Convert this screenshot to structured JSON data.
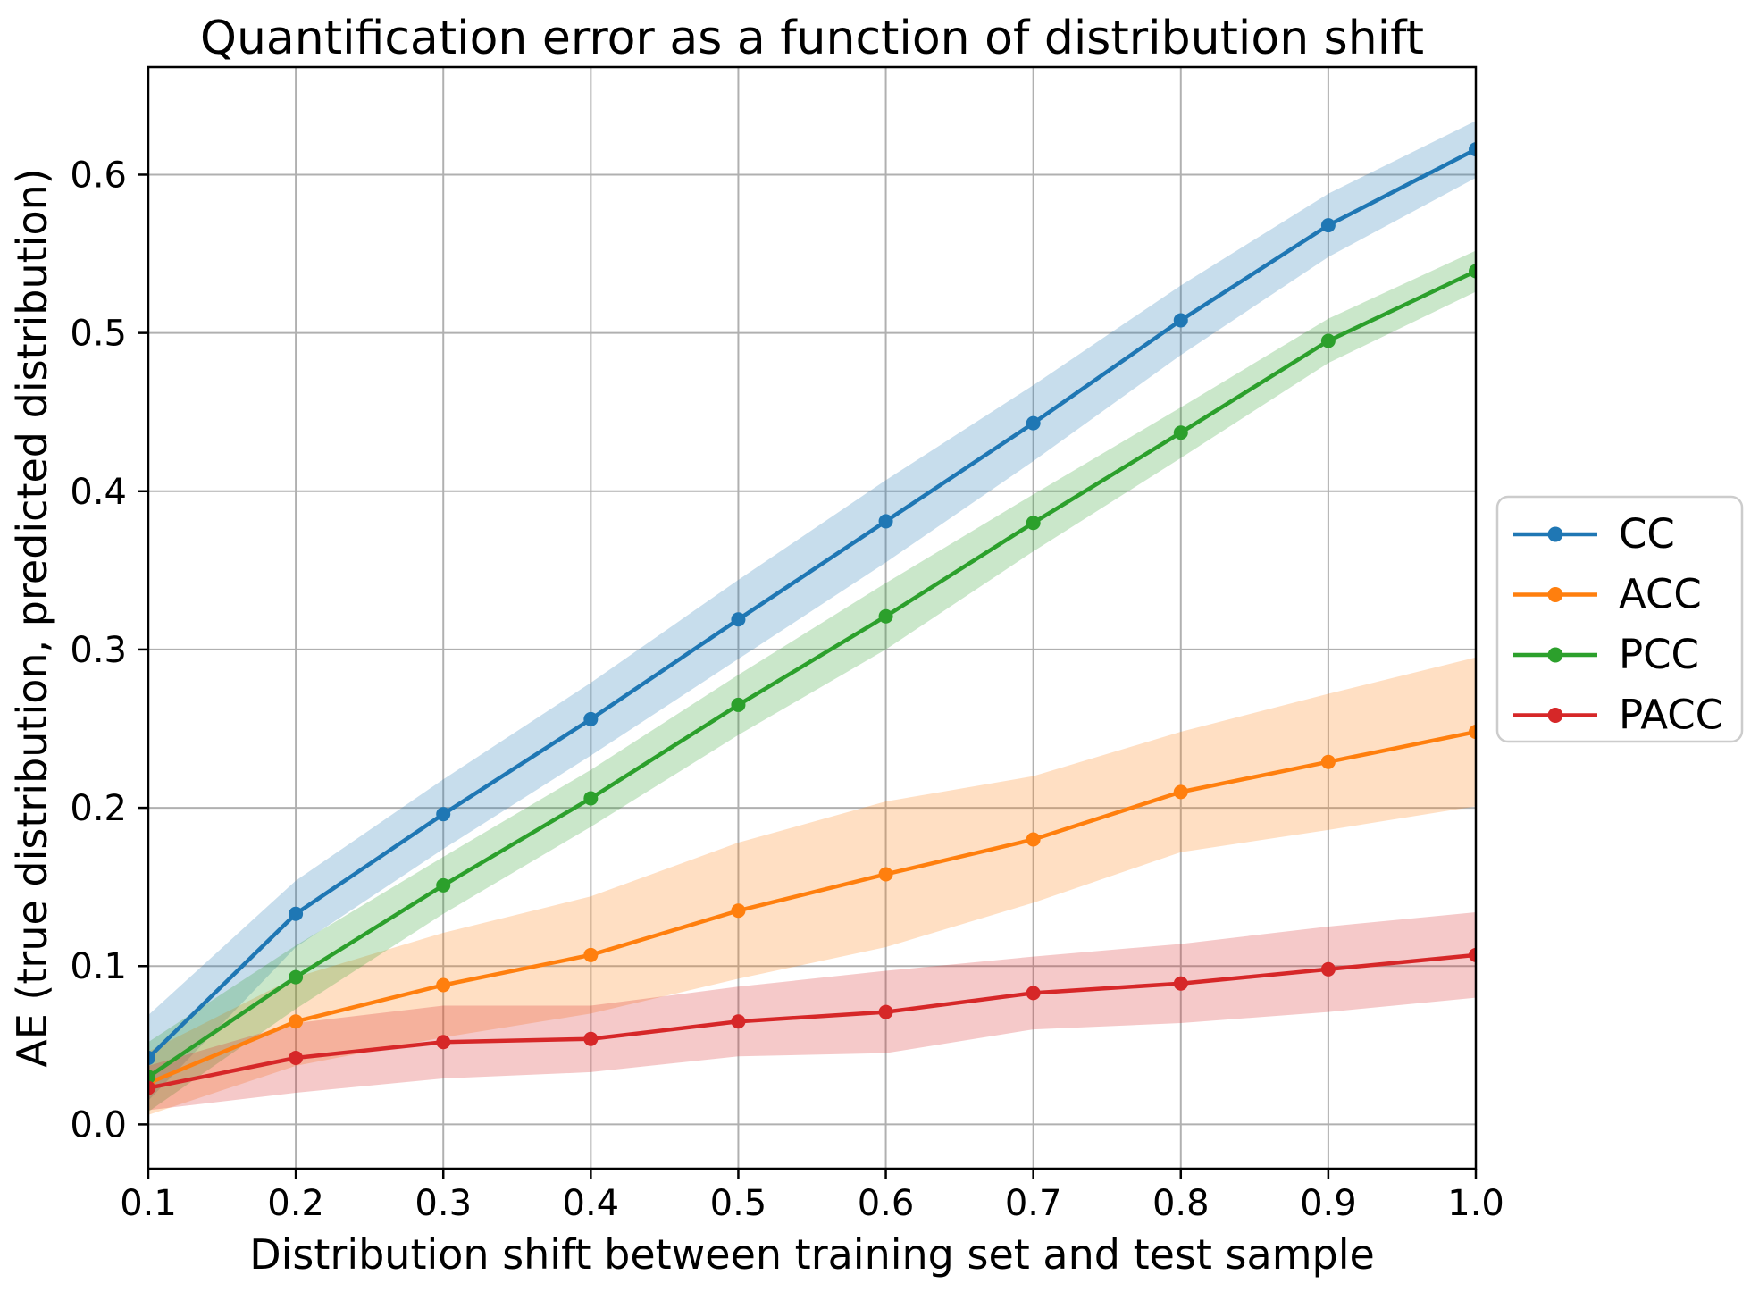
{
  "figure": {
    "background": "#ffffff"
  },
  "chart_data": {
    "type": "line",
    "title": "Quantification error as a function of distribution shift",
    "xlabel": "Distribution shift between training set and test sample",
    "ylabel": "AE (true distribution, predicted distribution)",
    "x": [
      0.1,
      0.2,
      0.3,
      0.4,
      0.5,
      0.6,
      0.7,
      0.8,
      0.9,
      1.0
    ],
    "xtick_labels": [
      "0.1",
      "0.2",
      "0.3",
      "0.4",
      "0.5",
      "0.6",
      "0.7",
      "0.8",
      "0.9",
      "1.0"
    ],
    "ytick_values": [
      0.0,
      0.1,
      0.2,
      0.3,
      0.4,
      0.5,
      0.6
    ],
    "ytick_labels": [
      "0.0",
      "0.1",
      "0.2",
      "0.3",
      "0.4",
      "0.5",
      "0.6"
    ],
    "xlim": [
      0.1,
      1.0
    ],
    "ylim": [
      -0.028,
      0.668
    ],
    "grid": true,
    "grid_color": "#b0b0b0",
    "spine_color": "#000000",
    "band_opacity": 0.25,
    "legend": {
      "position": "outside-right",
      "entries": [
        "CC",
        "ACC",
        "PCC",
        "PACC"
      ],
      "border_color": "#cccccc",
      "background": "#ffffff"
    },
    "series": [
      {
        "name": "CC",
        "color": "#1f77b4",
        "values": [
          0.042,
          0.133,
          0.196,
          0.256,
          0.319,
          0.381,
          0.443,
          0.508,
          0.568,
          0.616
        ],
        "band_lower": [
          0.015,
          0.112,
          0.174,
          0.233,
          0.294,
          0.355,
          0.419,
          0.486,
          0.548,
          0.598
        ],
        "band_upper": [
          0.069,
          0.154,
          0.218,
          0.279,
          0.344,
          0.407,
          0.467,
          0.53,
          0.588,
          0.634
        ]
      },
      {
        "name": "ACC",
        "color": "#ff7f0e",
        "values": [
          0.026,
          0.065,
          0.088,
          0.107,
          0.135,
          0.158,
          0.18,
          0.21,
          0.229,
          0.248
        ],
        "band_lower": [
          0.006,
          0.037,
          0.055,
          0.07,
          0.092,
          0.112,
          0.14,
          0.172,
          0.186,
          0.201
        ],
        "band_upper": [
          0.046,
          0.093,
          0.121,
          0.144,
          0.178,
          0.204,
          0.22,
          0.248,
          0.272,
          0.295
        ]
      },
      {
        "name": "PCC",
        "color": "#2ca02c",
        "values": [
          0.03,
          0.093,
          0.151,
          0.206,
          0.265,
          0.321,
          0.38,
          0.437,
          0.495,
          0.539
        ],
        "band_lower": [
          0.008,
          0.073,
          0.133,
          0.188,
          0.246,
          0.3,
          0.362,
          0.421,
          0.481,
          0.526
        ],
        "band_upper": [
          0.052,
          0.113,
          0.169,
          0.224,
          0.284,
          0.342,
          0.398,
          0.453,
          0.509,
          0.552
        ]
      },
      {
        "name": "PACC",
        "color": "#d62728",
        "values": [
          0.023,
          0.042,
          0.052,
          0.054,
          0.065,
          0.071,
          0.083,
          0.089,
          0.098,
          0.107
        ],
        "band_lower": [
          0.009,
          0.02,
          0.029,
          0.033,
          0.043,
          0.045,
          0.06,
          0.064,
          0.071,
          0.08
        ],
        "band_upper": [
          0.037,
          0.064,
          0.075,
          0.075,
          0.087,
          0.097,
          0.106,
          0.114,
          0.125,
          0.134
        ]
      }
    ]
  }
}
